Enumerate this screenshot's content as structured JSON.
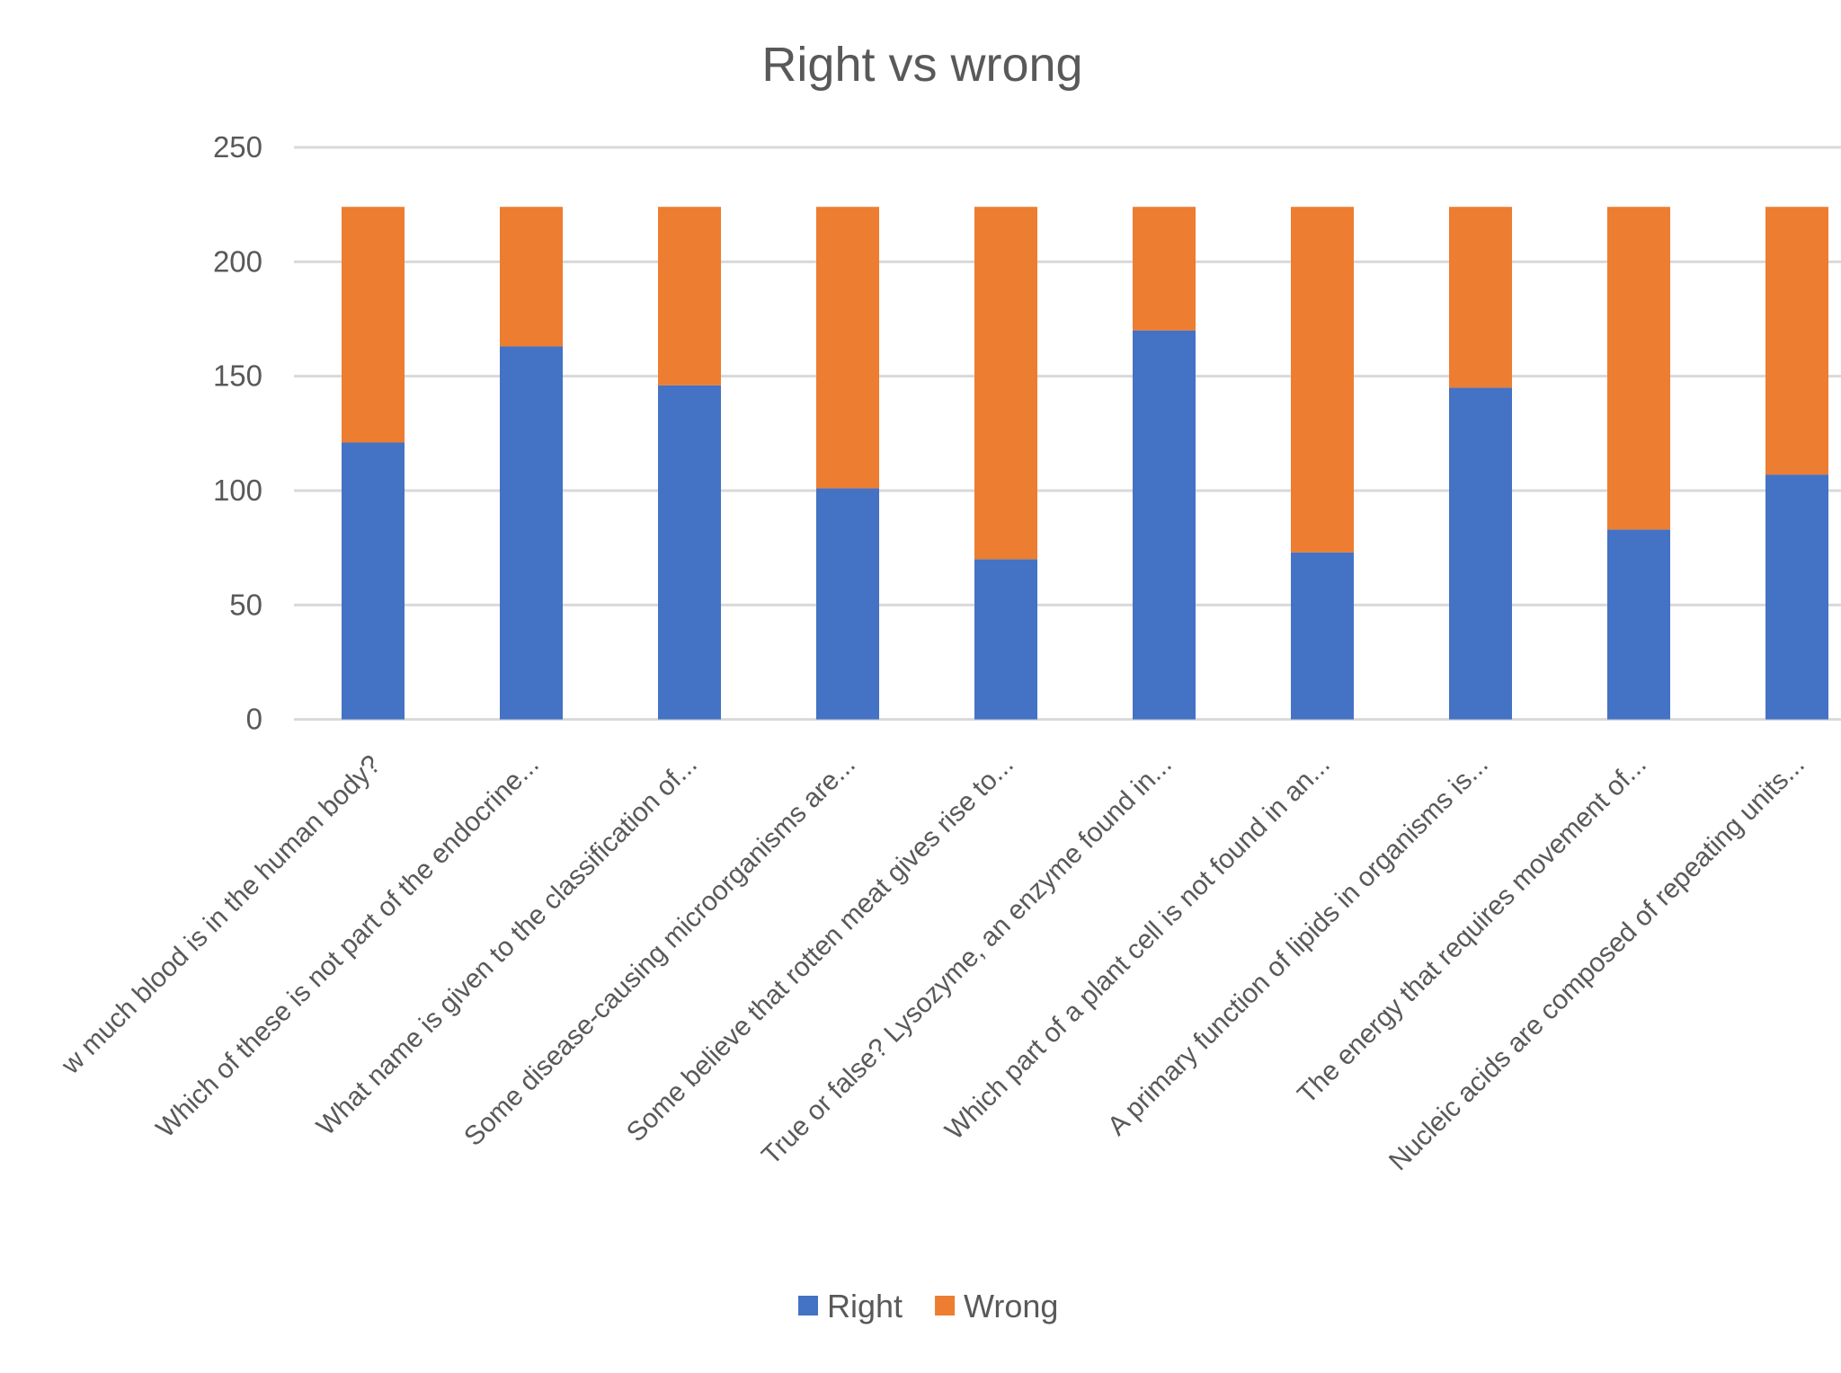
{
  "chart_data": {
    "type": "bar",
    "stacked": true,
    "title": "Right vs wrong",
    "xlabel": "",
    "ylabel": "",
    "ylim": [
      0,
      250
    ],
    "yticks": [
      0,
      50,
      100,
      150,
      200,
      250
    ],
    "grid": true,
    "legend_position": "bottom",
    "categories": [
      "w much blood is in the human body?",
      "Which of these is not part of the endocrine...",
      "What name is given to the classification of...",
      "Some disease-causing microorganisms are...",
      "Some believe that rotten meat gives rise to...",
      "True or false? Lysozyme, an enzyme found in...",
      "Which part of a plant cell is not found in an...",
      "A primary function of lipids in organisms is...",
      "The energy that requires movement of...",
      "Nucleic acids are composed of repeating units..."
    ],
    "series": [
      {
        "name": "Right",
        "color": "#4472c4",
        "values": [
          121,
          163,
          146,
          101,
          70,
          170,
          73,
          145,
          83,
          107
        ]
      },
      {
        "name": "Wrong",
        "color": "#ed7d31",
        "values": [
          103,
          61,
          78,
          123,
          154,
          54,
          151,
          79,
          141,
          117
        ]
      }
    ]
  }
}
